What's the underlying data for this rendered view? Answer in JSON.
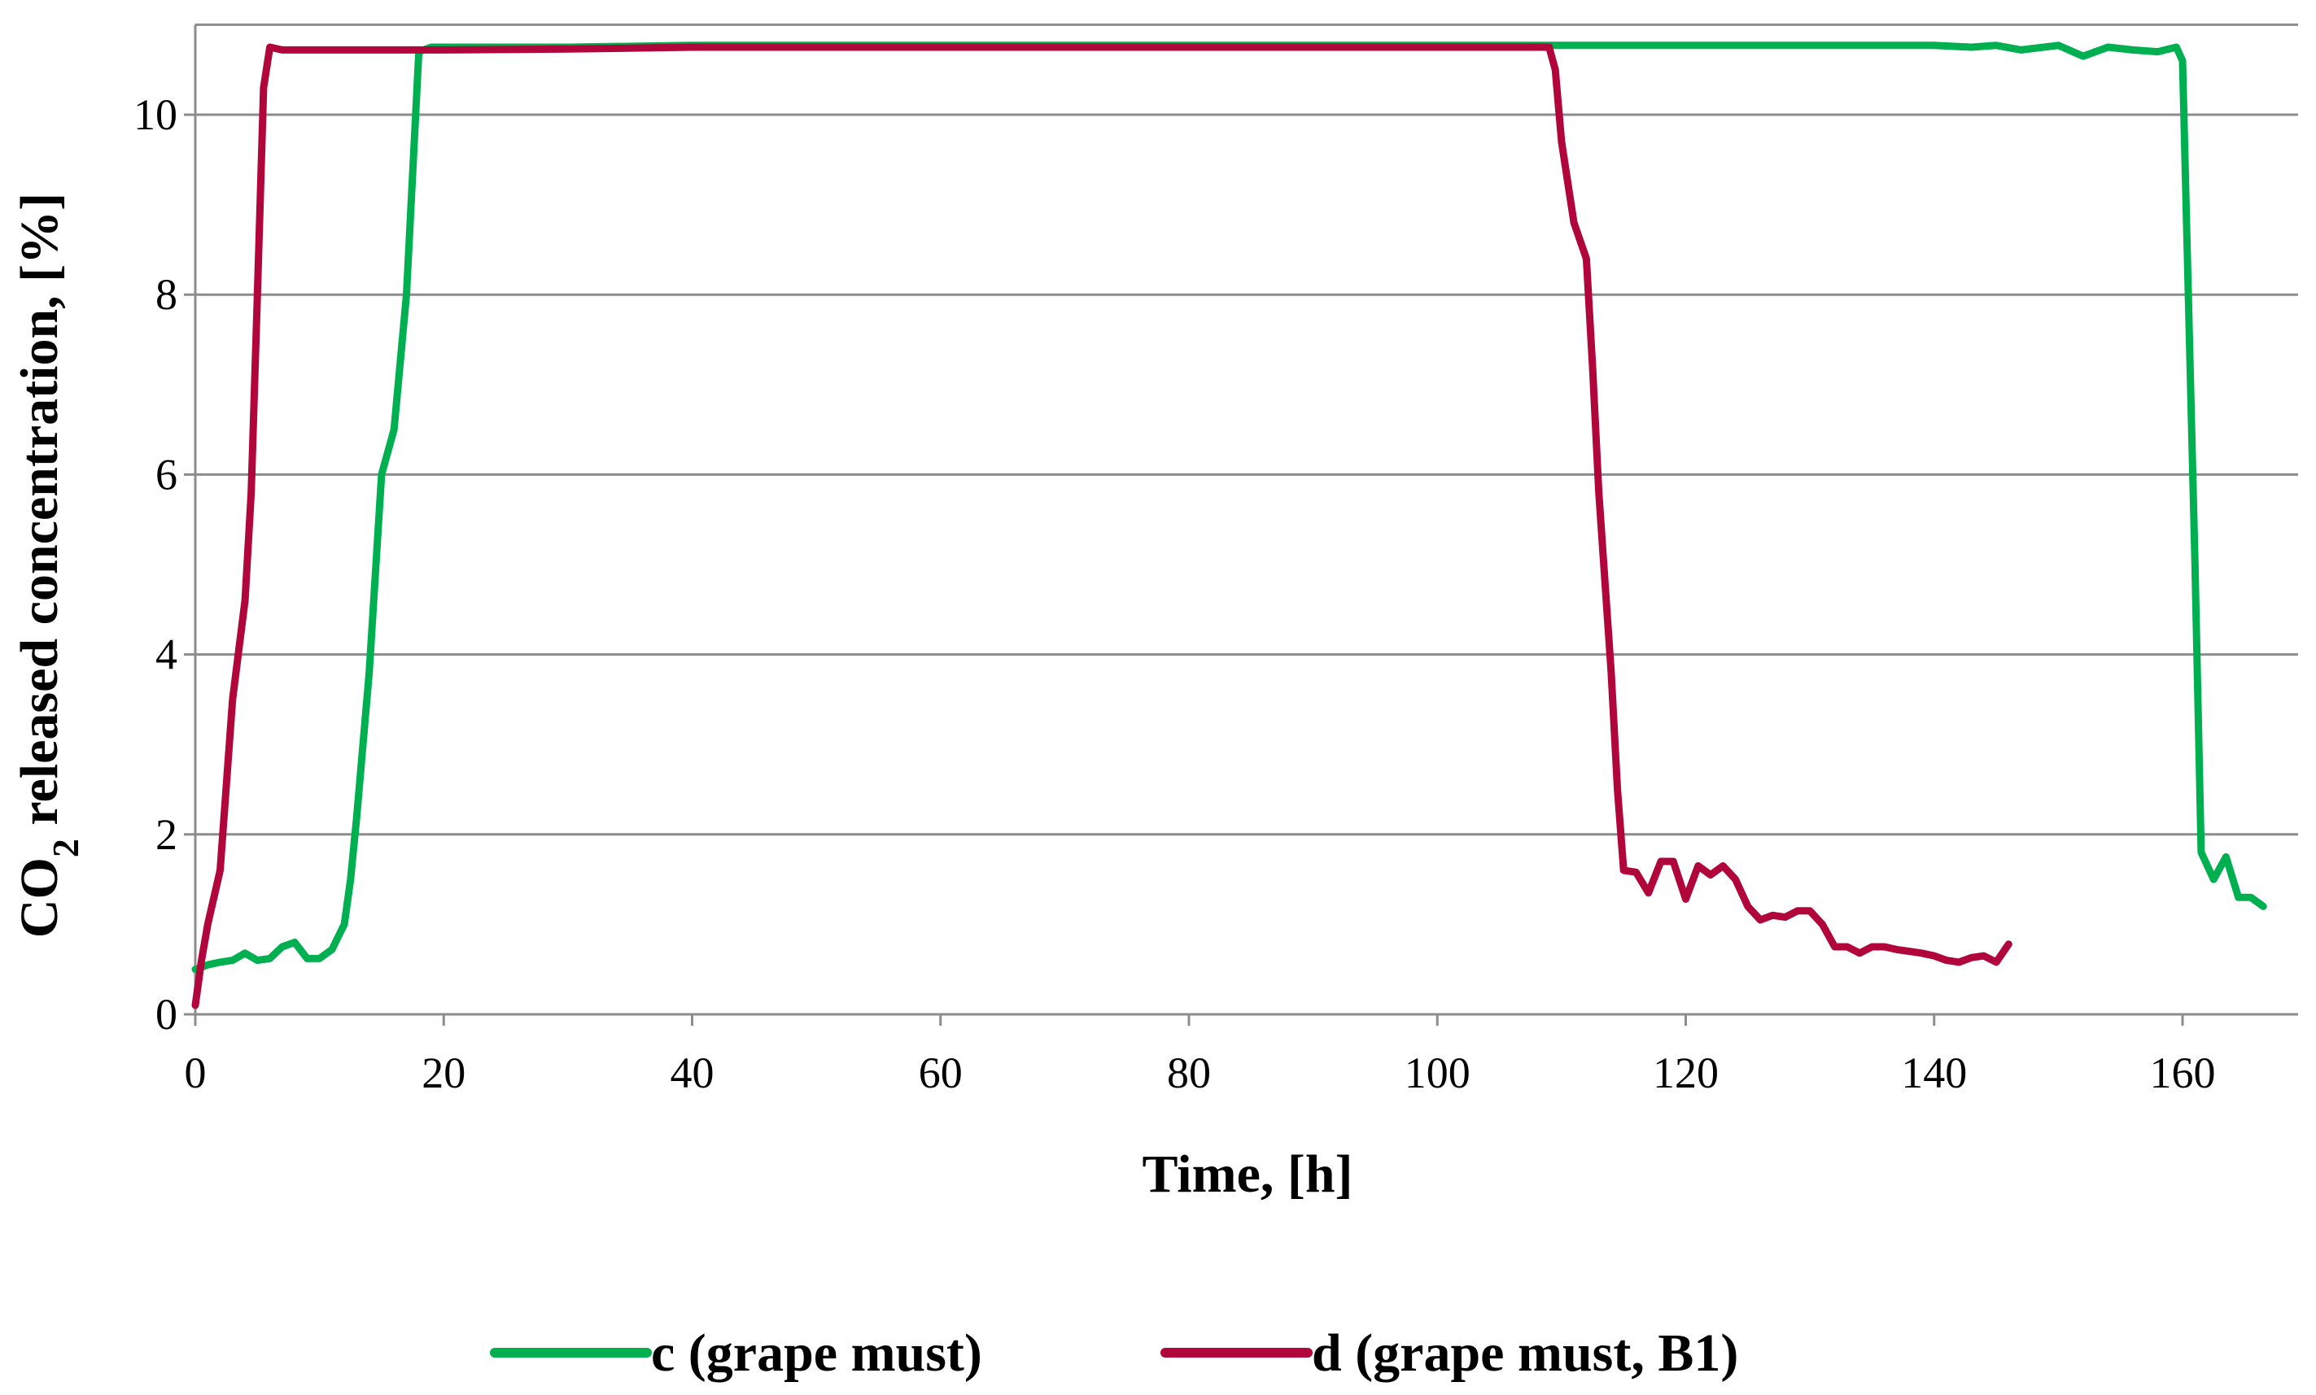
{
  "chart_data": {
    "type": "line",
    "title": "",
    "xlabel": "Time, [h]",
    "ylabel_prefix": "CO",
    "ylabel_subscript": "2",
    "ylabel_suffix": " released concentration, [%]",
    "xlim": [
      0,
      170
    ],
    "ylim": [
      0,
      11
    ],
    "xticks": [
      0,
      20,
      40,
      60,
      80,
      100,
      120,
      140,
      160
    ],
    "yticks": [
      0,
      2,
      4,
      6,
      8,
      10
    ],
    "grid": "horizontal",
    "legend_position": "bottom",
    "series": [
      {
        "name": "c (grape must)",
        "color": "#00B050",
        "points": [
          [
            0,
            0.5
          ],
          [
            1,
            0.55
          ],
          [
            2,
            0.58
          ],
          [
            3,
            0.6
          ],
          [
            4,
            0.68
          ],
          [
            5,
            0.6
          ],
          [
            6,
            0.62
          ],
          [
            7,
            0.75
          ],
          [
            8,
            0.8
          ],
          [
            9,
            0.62
          ],
          [
            10,
            0.62
          ],
          [
            11,
            0.72
          ],
          [
            12,
            1.0
          ],
          [
            12.5,
            1.5
          ],
          [
            13,
            2.2
          ],
          [
            14,
            3.8
          ],
          [
            15,
            6.0
          ],
          [
            16,
            6.5
          ],
          [
            17,
            8.0
          ],
          [
            18,
            10.7
          ],
          [
            19,
            10.75
          ],
          [
            25,
            10.75
          ],
          [
            30,
            10.75
          ],
          [
            40,
            10.77
          ],
          [
            60,
            10.77
          ],
          [
            80,
            10.77
          ],
          [
            100,
            10.77
          ],
          [
            110,
            10.77
          ],
          [
            120,
            10.77
          ],
          [
            130,
            10.77
          ],
          [
            140,
            10.77
          ],
          [
            143,
            10.75
          ],
          [
            145,
            10.77
          ],
          [
            147,
            10.72
          ],
          [
            150,
            10.77
          ],
          [
            152,
            10.65
          ],
          [
            154,
            10.75
          ],
          [
            156,
            10.72
          ],
          [
            158,
            10.7
          ],
          [
            159.5,
            10.75
          ],
          [
            160,
            10.6
          ],
          [
            161,
            5.0
          ],
          [
            161.5,
            1.8
          ],
          [
            162.5,
            1.5
          ],
          [
            163.5,
            1.75
          ],
          [
            164.5,
            1.3
          ],
          [
            165.5,
            1.3
          ],
          [
            166.5,
            1.2
          ]
        ]
      },
      {
        "name": "d (grape must, B1)",
        "color": "#B0063C",
        "points": [
          [
            0,
            0.1
          ],
          [
            0.5,
            0.6
          ],
          [
            1,
            1.0
          ],
          [
            2,
            1.6
          ],
          [
            3,
            3.5
          ],
          [
            4,
            4.6
          ],
          [
            4.5,
            5.8
          ],
          [
            5,
            8.0
          ],
          [
            5.5,
            10.3
          ],
          [
            6,
            10.75
          ],
          [
            7,
            10.72
          ],
          [
            10,
            10.72
          ],
          [
            20,
            10.72
          ],
          [
            30,
            10.73
          ],
          [
            40,
            10.75
          ],
          [
            60,
            10.75
          ],
          [
            80,
            10.75
          ],
          [
            100,
            10.75
          ],
          [
            108,
            10.75
          ],
          [
            109,
            10.75
          ],
          [
            109.5,
            10.5
          ],
          [
            110,
            9.7
          ],
          [
            111,
            8.8
          ],
          [
            112,
            8.4
          ],
          [
            112.5,
            7.2
          ],
          [
            113,
            5.8
          ],
          [
            114,
            3.8
          ],
          [
            114.5,
            2.5
          ],
          [
            115,
            1.6
          ],
          [
            116,
            1.58
          ],
          [
            117,
            1.35
          ],
          [
            118,
            1.7
          ],
          [
            119,
            1.7
          ],
          [
            120,
            1.28
          ],
          [
            121,
            1.65
          ],
          [
            122,
            1.55
          ],
          [
            123,
            1.65
          ],
          [
            124,
            1.5
          ],
          [
            125,
            1.2
          ],
          [
            126,
            1.05
          ],
          [
            127,
            1.1
          ],
          [
            128,
            1.08
          ],
          [
            129,
            1.15
          ],
          [
            130,
            1.15
          ],
          [
            131,
            1.0
          ],
          [
            132,
            0.75
          ],
          [
            133,
            0.75
          ],
          [
            134,
            0.68
          ],
          [
            135,
            0.75
          ],
          [
            136,
            0.75
          ],
          [
            137,
            0.72
          ],
          [
            138,
            0.7
          ],
          [
            139,
            0.68
          ],
          [
            140,
            0.65
          ],
          [
            141,
            0.6
          ],
          [
            142,
            0.58
          ],
          [
            143,
            0.63
          ],
          [
            144,
            0.65
          ],
          [
            145,
            0.58
          ],
          [
            146,
            0.78
          ]
        ]
      }
    ]
  }
}
